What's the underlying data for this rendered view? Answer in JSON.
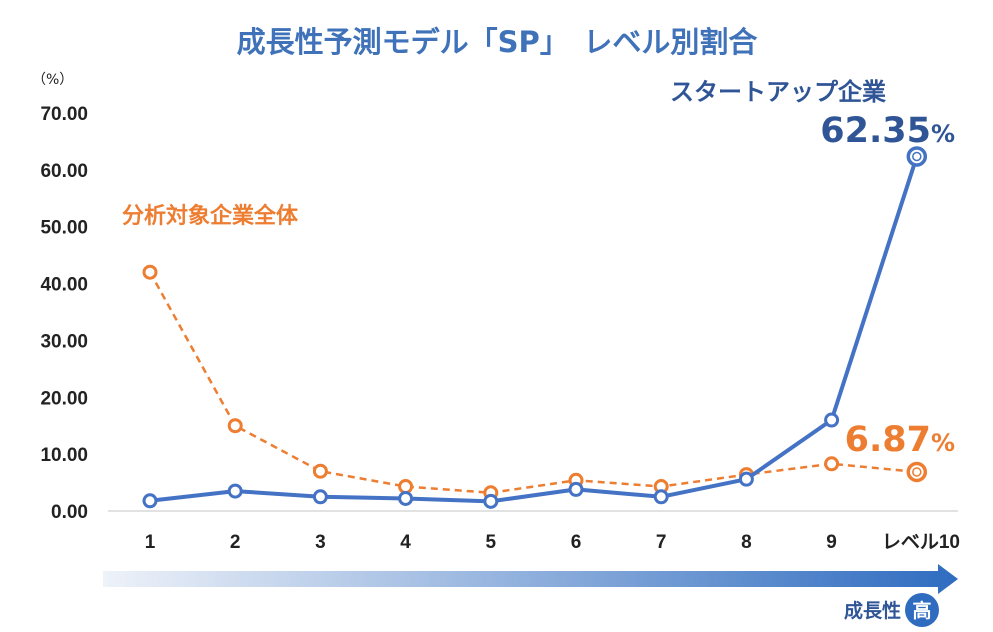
{
  "chart_data": {
    "type": "line",
    "title": "成長性予測モデル「SP」　レベル別割合",
    "unit_label": "（%）",
    "categories": [
      "1",
      "2",
      "3",
      "4",
      "5",
      "6",
      "7",
      "8",
      "9",
      "レベル10"
    ],
    "ylim": [
      0,
      70
    ],
    "yticks": [
      "0.00",
      "10.00",
      "20.00",
      "30.00",
      "40.00",
      "50.00",
      "60.00",
      "70.00"
    ],
    "series": [
      {
        "name": "スタートアップ企業",
        "color": "#4472c4",
        "style": "solid",
        "values": [
          1.8,
          3.5,
          2.5,
          2.2,
          1.7,
          3.8,
          2.5,
          5.6,
          16.0,
          62.35
        ],
        "end_label": "62.35",
        "end_label_unit": "%"
      },
      {
        "name": "分析対象企業全体",
        "color": "#ed7d31",
        "style": "dashed",
        "values": [
          42.0,
          15.0,
          7.0,
          4.3,
          3.2,
          5.4,
          4.3,
          6.4,
          8.3,
          6.87
        ],
        "end_label": "6.87",
        "end_label_unit": "%"
      }
    ],
    "grid": false
  },
  "footer": {
    "label": "成長性",
    "badge": "高"
  },
  "colors": {
    "title": "#3f72b9",
    "arrow_start": "#eef2f9",
    "arrow_end": "#2f6cc0"
  }
}
